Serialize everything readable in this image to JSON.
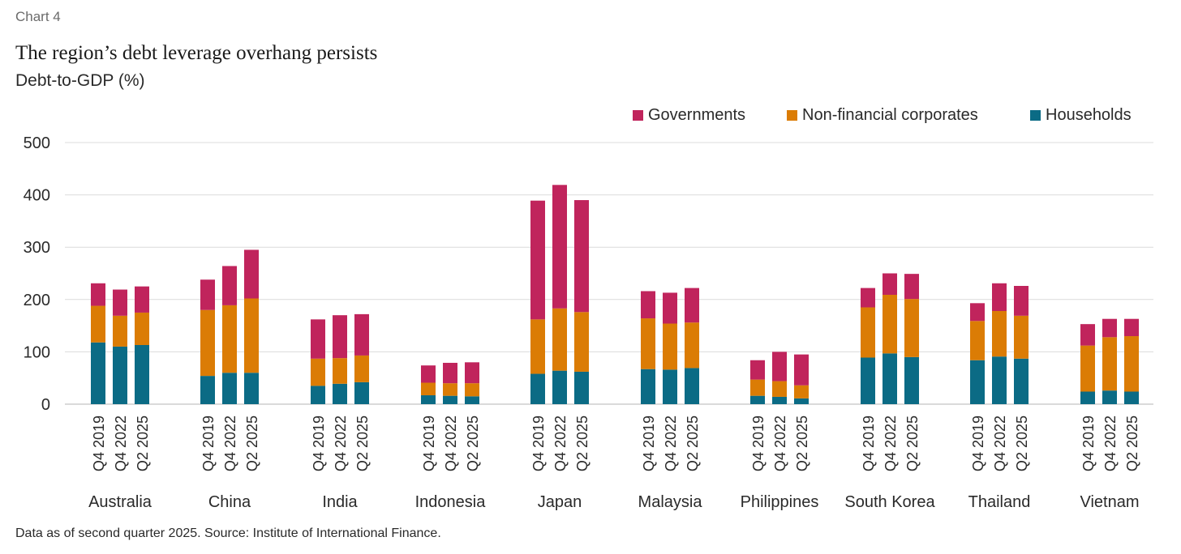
{
  "header": {
    "kicker": "Chart 4",
    "title": "The region’s debt leverage overhang persists",
    "subtitle": "Debt-to-GDP (%)"
  },
  "footer": {
    "note": "Data as of second quarter 2025. Source: Institute of International Finance."
  },
  "legend": {
    "items": [
      {
        "label": "Governments",
        "color": "#c0245c"
      },
      {
        "label": "Non-financial corporates",
        "color": "#db7c05"
      },
      {
        "label": "Households",
        "color": "#0b6b85"
      }
    ]
  },
  "chart_data": {
    "type": "bar",
    "stacked": true,
    "title": "The region’s debt leverage overhang persists",
    "ylabel": "Debt-to-GDP (%)",
    "ylim": [
      0,
      500
    ],
    "yticks": [
      0,
      100,
      200,
      300,
      400,
      500
    ],
    "grid": true,
    "legend_position": "top-right",
    "periods": [
      "Q4 2019",
      "Q4 2022",
      "Q2 2025"
    ],
    "categories": [
      "Australia",
      "China",
      "India",
      "Indonesia",
      "Japan",
      "Malaysia",
      "Philippines",
      "South Korea",
      "Thailand",
      "Vietnam"
    ],
    "series": [
      {
        "name": "Households",
        "color": "#0b6b85",
        "values": [
          [
            118,
            110,
            113
          ],
          [
            54,
            60,
            60
          ],
          [
            35,
            39,
            42
          ],
          [
            17,
            16,
            15
          ],
          [
            58,
            64,
            62
          ],
          [
            67,
            66,
            69
          ],
          [
            16,
            14,
            11
          ],
          [
            89,
            97,
            90
          ],
          [
            84,
            91,
            87
          ],
          [
            24,
            26,
            24
          ]
        ]
      },
      {
        "name": "Non-financial corporates",
        "color": "#db7c05",
        "values": [
          [
            70,
            59,
            62
          ],
          [
            126,
            129,
            142
          ],
          [
            52,
            49,
            51
          ],
          [
            24,
            24,
            25
          ],
          [
            104,
            119,
            114
          ],
          [
            97,
            88,
            87
          ],
          [
            31,
            30,
            25
          ],
          [
            96,
            112,
            111
          ],
          [
            75,
            87,
            82
          ],
          [
            88,
            102,
            106
          ]
        ]
      },
      {
        "name": "Governments",
        "color": "#c0245c",
        "values": [
          [
            43,
            50,
            50
          ],
          [
            58,
            75,
            93
          ],
          [
            75,
            82,
            79
          ],
          [
            33,
            39,
            40
          ],
          [
            227,
            236,
            214
          ],
          [
            52,
            59,
            66
          ],
          [
            37,
            56,
            59
          ],
          [
            37,
            41,
            48
          ],
          [
            34,
            53,
            57
          ],
          [
            41,
            35,
            33
          ]
        ]
      }
    ]
  }
}
